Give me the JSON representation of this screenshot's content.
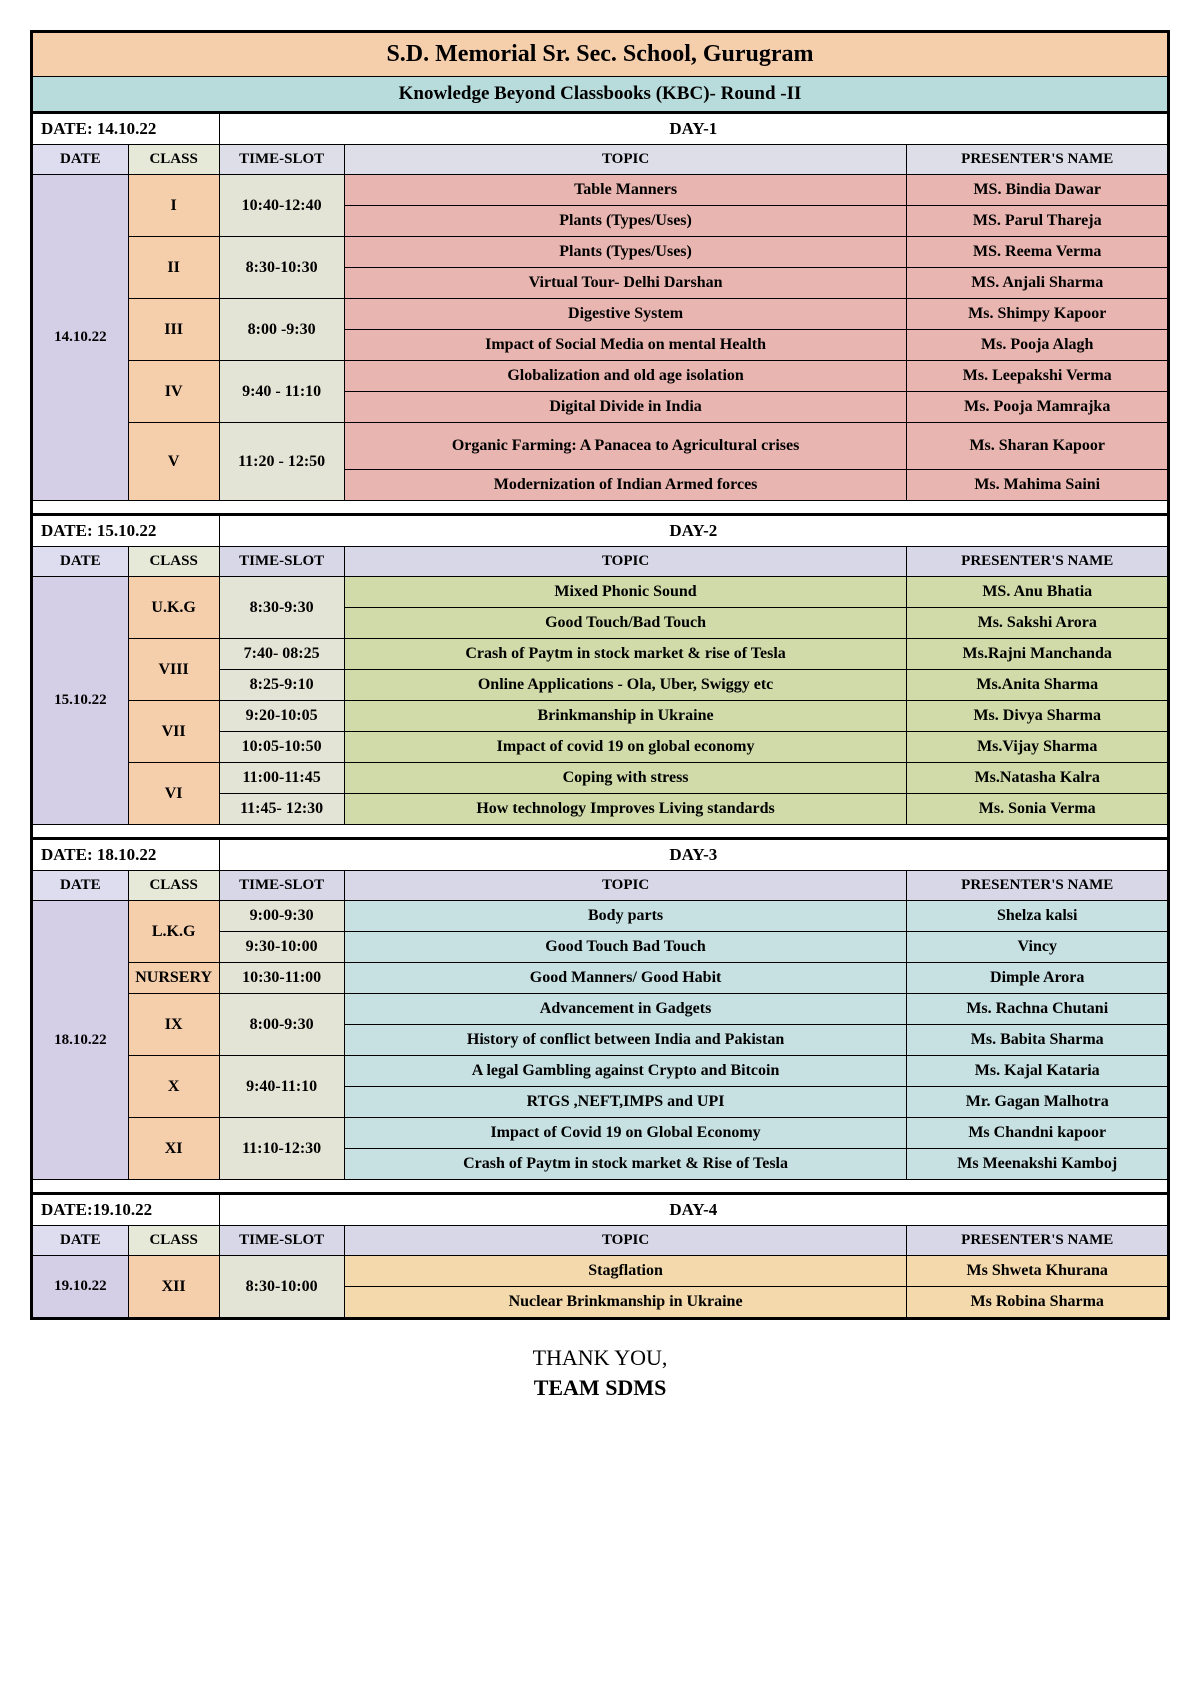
{
  "title": "S.D. Memorial Sr. Sec. School, Gurugram",
  "subtitle": "Knowledge Beyond Classbooks (KBC)- Round -II",
  "columns": [
    "DATE",
    "CLASS",
    "TIME-SLOT",
    "TOPIC",
    "PRESENTER'S NAME"
  ],
  "footer": {
    "line1": "THANK YOU,",
    "line2": "TEAM SDMS"
  },
  "colors": {
    "day1_header_bg": "#dedee9",
    "day1_topic_bg": "#e8b5b0",
    "day2_header_bg": "#d8d7e8",
    "day2_topic_bg": "#d0dba9",
    "day3_header_bg": "#d8d7e8",
    "day3_topic_bg": "#c7e0e2",
    "day4_header_bg": "#d8d7e8",
    "day4_topic_bg": "#f3d9ab"
  },
  "days": [
    {
      "date_label": "DATE: 14.10.22",
      "day_label": "DAY-1",
      "date_cell": "14.10.22",
      "rows": [
        {
          "class": "I",
          "time": "10:40-12:40",
          "topic": "Table Manners",
          "presenter": "MS. Bindia Dawar",
          "class_rs": 2,
          "time_rs": 2,
          "date_rs": 10
        },
        {
          "topic": "Plants (Types/Uses)",
          "presenter": "MS. Parul Thareja"
        },
        {
          "class": "II",
          "time": "8:30-10:30",
          "topic": "Plants (Types/Uses)",
          "presenter": "MS. Reema Verma",
          "class_rs": 2,
          "time_rs": 2
        },
        {
          "topic": "Virtual Tour- Delhi Darshan",
          "presenter": "MS. Anjali Sharma"
        },
        {
          "class": "III",
          "time": "8:00 -9:30",
          "topic": "Digestive System",
          "presenter": "Ms. Shimpy Kapoor",
          "class_rs": 2,
          "time_rs": 2
        },
        {
          "topic": "Impact of Social Media on mental Health",
          "presenter": "Ms. Pooja Alagh"
        },
        {
          "class": "IV",
          "time": "9:40 - 11:10",
          "topic": "Globalization and old age isolation",
          "presenter": "Ms. Leepakshi Verma",
          "class_rs": 2,
          "time_rs": 2
        },
        {
          "topic": "Digital Divide in India",
          "presenter": "Ms. Pooja Mamrajka"
        },
        {
          "class": "V",
          "time": "11:20 - 12:50",
          "topic": "Organic Farming: A Panacea to Agricultural crises",
          "presenter": "Ms. Sharan Kapoor",
          "class_rs": 2,
          "time_rs": 2,
          "tall": true
        },
        {
          "topic": "Modernization of Indian Armed forces",
          "presenter": "Ms. Mahima Saini"
        }
      ]
    },
    {
      "date_label": "DATE: 15.10.22",
      "day_label": "DAY-2",
      "date_cell": "15.10.22",
      "rows": [
        {
          "class": "U.K.G",
          "time": "8:30-9:30",
          "topic": "Mixed Phonic Sound",
          "presenter": "MS. Anu Bhatia",
          "class_rs": 2,
          "time_rs": 2,
          "date_rs": 8
        },
        {
          "topic": "Good Touch/Bad Touch",
          "presenter": "Ms. Sakshi Arora"
        },
        {
          "class": "VIII",
          "time": "7:40- 08:25",
          "topic": "Crash of  Paytm in stock market & rise of Tesla",
          "presenter": "Ms.Rajni Manchanda",
          "class_rs": 2
        },
        {
          "time": "8:25-9:10",
          "topic": "Online Applications - Ola, Uber, Swiggy etc",
          "presenter": "Ms.Anita Sharma"
        },
        {
          "class": "VII",
          "time": "9:20-10:05",
          "topic": "Brinkmanship in Ukraine",
          "presenter": "Ms. Divya Sharma",
          "class_rs": 2
        },
        {
          "time": "10:05-10:50",
          "topic": "Impact of covid 19 on global economy",
          "presenter": "Ms.Vijay Sharma"
        },
        {
          "class": "VI",
          "time": "11:00-11:45",
          "topic": "Coping with stress",
          "presenter": "Ms.Natasha Kalra",
          "class_rs": 2
        },
        {
          "time": "11:45- 12:30",
          "topic": "How technology Improves Living standards",
          "presenter": "Ms. Sonia Verma"
        }
      ]
    },
    {
      "date_label": "DATE: 18.10.22",
      "day_label": "DAY-3",
      "date_cell": "18.10.22",
      "rows": [
        {
          "class": "L.K.G",
          "time": "9:00-9:30",
          "topic": "Body parts",
          "presenter": "Shelza kalsi",
          "class_rs": 2,
          "date_rs": 9
        },
        {
          "time": "9:30-10:00",
          "topic": "Good Touch Bad Touch",
          "presenter": "Vincy"
        },
        {
          "class": "NURSERY",
          "time": "10:30-11:00",
          "topic": "Good Manners/ Good Habit",
          "presenter": "Dimple Arora"
        },
        {
          "class": "IX",
          "time": "8:00-9:30",
          "topic": "Advancement in Gadgets",
          "presenter": "Ms. Rachna Chutani",
          "class_rs": 2,
          "time_rs": 2
        },
        {
          "topic": "History of conflict between India and Pakistan",
          "presenter": "Ms. Babita Sharma"
        },
        {
          "class": "X",
          "time": "9:40-11:10",
          "topic": "A legal Gambling against Crypto and Bitcoin",
          "presenter": "Ms. Kajal Kataria",
          "class_rs": 2,
          "time_rs": 2
        },
        {
          "topic": "RTGS ,NEFT,IMPS and UPI",
          "presenter": "Mr. Gagan Malhotra"
        },
        {
          "class": "XI",
          "time": "11:10-12:30",
          "topic": "Impact of Covid 19 on Global Economy",
          "presenter": "Ms Chandni kapoor",
          "class_rs": 2,
          "time_rs": 2
        },
        {
          "topic": "Crash of Paytm in stock market & Rise of Tesla",
          "presenter": "Ms Meenakshi Kamboj"
        }
      ]
    },
    {
      "date_label": "DATE:19.10.22",
      "day_label": "DAY-4",
      "date_cell": "19.10.22",
      "rows": [
        {
          "class": "XII",
          "time": "8:30-10:00",
          "topic": "Stagflation",
          "presenter": "Ms Shweta Khurana",
          "class_rs": 2,
          "time_rs": 2,
          "date_rs": 2
        },
        {
          "topic": "Nuclear Brinkmanship in Ukraine",
          "presenter": "Ms Robina Sharma"
        }
      ]
    }
  ]
}
